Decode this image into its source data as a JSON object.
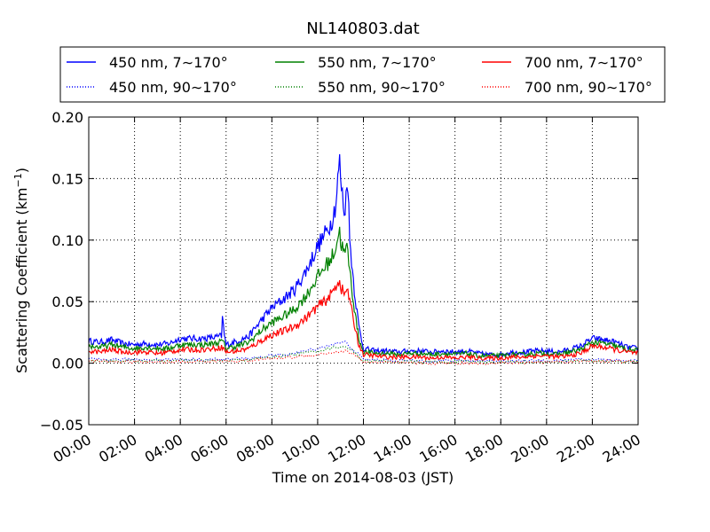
{
  "chart_data": {
    "type": "line",
    "title": "NL140803.dat",
    "xlabel": "Time on 2014-08-03 (JST)",
    "ylabel": {
      "main": "Scattering Coefficient (km",
      "sup": "−1",
      "close": ")"
    },
    "xlim": [
      "00:00",
      "24:00"
    ],
    "ylim": [
      -0.05,
      0.2
    ],
    "x_ticks": [
      "00:00",
      "02:00",
      "04:00",
      "06:00",
      "08:00",
      "10:00",
      "12:00",
      "14:00",
      "16:00",
      "18:00",
      "20:00",
      "22:00",
      "24:00"
    ],
    "y_ticks": [
      "−0.05",
      "0.00",
      "0.05",
      "0.10",
      "0.15",
      "0.20"
    ],
    "grid": true,
    "legend_position": "top (above plot)",
    "legend_columns": 3,
    "series": [
      {
        "name": "450 nm, 7∼170°",
        "color": "#0000ff",
        "style": "solid",
        "points": [
          [
            0,
            0.018
          ],
          [
            0.5,
            0.017
          ],
          [
            1,
            0.019
          ],
          [
            1.5,
            0.016
          ],
          [
            2,
            0.015
          ],
          [
            2.5,
            0.016
          ],
          [
            3,
            0.015
          ],
          [
            3.5,
            0.016
          ],
          [
            4,
            0.02
          ],
          [
            4.5,
            0.02
          ],
          [
            5,
            0.02
          ],
          [
            5.5,
            0.021
          ],
          [
            5.8,
            0.022
          ],
          [
            5.85,
            0.04
          ],
          [
            5.9,
            0.025
          ],
          [
            6,
            0.015
          ],
          [
            6.5,
            0.018
          ],
          [
            7,
            0.022
          ],
          [
            7.5,
            0.034
          ],
          [
            8,
            0.045
          ],
          [
            8.5,
            0.052
          ],
          [
            9,
            0.06
          ],
          [
            9.5,
            0.075
          ],
          [
            10,
            0.095
          ],
          [
            10.3,
            0.104
          ],
          [
            10.6,
            0.115
          ],
          [
            10.8,
            0.13
          ],
          [
            10.95,
            0.165
          ],
          [
            11.05,
            0.14
          ],
          [
            11.2,
            0.12
          ],
          [
            11.3,
            0.16
          ],
          [
            11.4,
            0.1
          ],
          [
            11.6,
            0.06
          ],
          [
            11.8,
            0.03
          ],
          [
            12,
            0.012
          ],
          [
            12.5,
            0.01
          ],
          [
            13,
            0.01
          ],
          [
            13.5,
            0.009
          ],
          [
            14,
            0.01
          ],
          [
            14.5,
            0.01
          ],
          [
            15,
            0.009
          ],
          [
            15.5,
            0.01
          ],
          [
            16,
            0.009
          ],
          [
            16.5,
            0.01
          ],
          [
            17,
            0.008
          ],
          [
            17.5,
            0.007
          ],
          [
            18,
            0.007
          ],
          [
            18.5,
            0.009
          ],
          [
            19,
            0.009
          ],
          [
            19.5,
            0.01
          ],
          [
            20,
            0.01
          ],
          [
            20.5,
            0.009
          ],
          [
            21,
            0.011
          ],
          [
            21.5,
            0.014
          ],
          [
            22,
            0.02
          ],
          [
            22.5,
            0.019
          ],
          [
            23,
            0.017
          ],
          [
            23.5,
            0.013
          ],
          [
            24,
            0.012
          ]
        ]
      },
      {
        "name": "550 nm, 7∼170°",
        "color": "#008000",
        "style": "solid",
        "points": [
          [
            0,
            0.014
          ],
          [
            0.5,
            0.013
          ],
          [
            1,
            0.015
          ],
          [
            1.5,
            0.013
          ],
          [
            2,
            0.012
          ],
          [
            2.5,
            0.013
          ],
          [
            3,
            0.012
          ],
          [
            3.5,
            0.012
          ],
          [
            4,
            0.015
          ],
          [
            4.5,
            0.015
          ],
          [
            5,
            0.015
          ],
          [
            5.5,
            0.016
          ],
          [
            5.85,
            0.018
          ],
          [
            6,
            0.012
          ],
          [
            6.5,
            0.014
          ],
          [
            7,
            0.017
          ],
          [
            7.5,
            0.026
          ],
          [
            8,
            0.033
          ],
          [
            8.5,
            0.038
          ],
          [
            9,
            0.044
          ],
          [
            9.5,
            0.055
          ],
          [
            10,
            0.07
          ],
          [
            10.3,
            0.078
          ],
          [
            10.6,
            0.085
          ],
          [
            10.8,
            0.095
          ],
          [
            10.95,
            0.108
          ],
          [
            11.05,
            0.095
          ],
          [
            11.2,
            0.088
          ],
          [
            11.3,
            0.095
          ],
          [
            11.4,
            0.075
          ],
          [
            11.6,
            0.045
          ],
          [
            11.8,
            0.02
          ],
          [
            12,
            0.009
          ],
          [
            12.5,
            0.008
          ],
          [
            13,
            0.008
          ],
          [
            13.5,
            0.007
          ],
          [
            14,
            0.008
          ],
          [
            14.5,
            0.008
          ],
          [
            15,
            0.007
          ],
          [
            15.5,
            0.008
          ],
          [
            16,
            0.007
          ],
          [
            16.5,
            0.008
          ],
          [
            17,
            0.006
          ],
          [
            17.5,
            0.006
          ],
          [
            18,
            0.006
          ],
          [
            18.5,
            0.007
          ],
          [
            19,
            0.007
          ],
          [
            19.5,
            0.008
          ],
          [
            20,
            0.008
          ],
          [
            20.5,
            0.007
          ],
          [
            21,
            0.009
          ],
          [
            21.5,
            0.011
          ],
          [
            22,
            0.017
          ],
          [
            22.5,
            0.016
          ],
          [
            23,
            0.014
          ],
          [
            23.5,
            0.011
          ],
          [
            24,
            0.01
          ]
        ]
      },
      {
        "name": "700 nm, 7∼170°",
        "color": "#ff0000",
        "style": "solid",
        "points": [
          [
            0,
            0.01
          ],
          [
            0.5,
            0.009
          ],
          [
            1,
            0.011
          ],
          [
            1.5,
            0.009
          ],
          [
            2,
            0.009
          ],
          [
            2.5,
            0.009
          ],
          [
            3,
            0.008
          ],
          [
            3.5,
            0.009
          ],
          [
            4,
            0.011
          ],
          [
            4.5,
            0.011
          ],
          [
            5,
            0.011
          ],
          [
            5.5,
            0.012
          ],
          [
            5.85,
            0.013
          ],
          [
            6,
            0.009
          ],
          [
            6.5,
            0.01
          ],
          [
            7,
            0.012
          ],
          [
            7.5,
            0.018
          ],
          [
            8,
            0.023
          ],
          [
            8.5,
            0.026
          ],
          [
            9,
            0.03
          ],
          [
            9.5,
            0.037
          ],
          [
            10,
            0.046
          ],
          [
            10.3,
            0.05
          ],
          [
            10.6,
            0.056
          ],
          [
            10.8,
            0.063
          ],
          [
            10.95,
            0.068
          ],
          [
            11.05,
            0.06
          ],
          [
            11.2,
            0.055
          ],
          [
            11.3,
            0.062
          ],
          [
            11.4,
            0.05
          ],
          [
            11.6,
            0.032
          ],
          [
            11.8,
            0.015
          ],
          [
            12,
            0.007
          ],
          [
            12.5,
            0.006
          ],
          [
            13,
            0.005
          ],
          [
            13.5,
            0.005
          ],
          [
            14,
            0.005
          ],
          [
            14.5,
            0.005
          ],
          [
            15,
            0.004
          ],
          [
            15.5,
            0.005
          ],
          [
            16,
            0.004
          ],
          [
            16.5,
            0.005
          ],
          [
            17,
            0.004
          ],
          [
            17.5,
            0.004
          ],
          [
            18,
            0.004
          ],
          [
            18.5,
            0.005
          ],
          [
            19,
            0.005
          ],
          [
            19.5,
            0.006
          ],
          [
            20,
            0.006
          ],
          [
            20.5,
            0.005
          ],
          [
            21,
            0.006
          ],
          [
            21.5,
            0.008
          ],
          [
            22,
            0.014
          ],
          [
            22.5,
            0.013
          ],
          [
            23,
            0.011
          ],
          [
            23.5,
            0.009
          ],
          [
            24,
            0.008
          ]
        ]
      },
      {
        "name": "450 nm, 90∼170°",
        "color": "#0000ff",
        "style": "dotted",
        "points": [
          [
            0,
            0.003
          ],
          [
            2,
            0.003
          ],
          [
            4,
            0.003
          ],
          [
            6,
            0.003
          ],
          [
            7,
            0.004
          ],
          [
            8,
            0.006
          ],
          [
            9,
            0.008
          ],
          [
            10,
            0.012
          ],
          [
            10.8,
            0.016
          ],
          [
            11.2,
            0.017
          ],
          [
            11.5,
            0.012
          ],
          [
            12,
            0.003
          ],
          [
            14,
            0.002
          ],
          [
            16,
            0.002
          ],
          [
            18,
            0.002
          ],
          [
            20,
            0.002
          ],
          [
            22,
            0.003
          ],
          [
            24,
            0.002
          ]
        ]
      },
      {
        "name": "550 nm, 90∼170°",
        "color": "#008000",
        "style": "dotted",
        "points": [
          [
            0,
            0.002
          ],
          [
            2,
            0.002
          ],
          [
            4,
            0.002
          ],
          [
            6,
            0.002
          ],
          [
            7,
            0.003
          ],
          [
            8,
            0.005
          ],
          [
            9,
            0.007
          ],
          [
            10,
            0.01
          ],
          [
            10.8,
            0.013
          ],
          [
            11.2,
            0.014
          ],
          [
            11.5,
            0.01
          ],
          [
            12,
            0.002
          ],
          [
            14,
            0.001
          ],
          [
            16,
            0.001
          ],
          [
            18,
            0.001
          ],
          [
            20,
            0.001
          ],
          [
            22,
            0.002
          ],
          [
            24,
            0.001
          ]
        ]
      },
      {
        "name": "700 nm, 90∼170°",
        "color": "#ff0000",
        "style": "dotted",
        "points": [
          [
            0,
            0.002
          ],
          [
            2,
            0.001
          ],
          [
            4,
            0.001
          ],
          [
            6,
            0.002
          ],
          [
            7,
            0.002
          ],
          [
            8,
            0.004
          ],
          [
            9,
            0.005
          ],
          [
            10,
            0.007
          ],
          [
            10.8,
            0.009
          ],
          [
            11.2,
            0.01
          ],
          [
            11.5,
            0.008
          ],
          [
            12,
            0.001
          ],
          [
            14,
            0.0
          ],
          [
            16,
            0.0
          ],
          [
            18,
            0.0
          ],
          [
            20,
            0.001
          ],
          [
            22,
            0.002
          ],
          [
            24,
            0.001
          ]
        ]
      }
    ]
  }
}
